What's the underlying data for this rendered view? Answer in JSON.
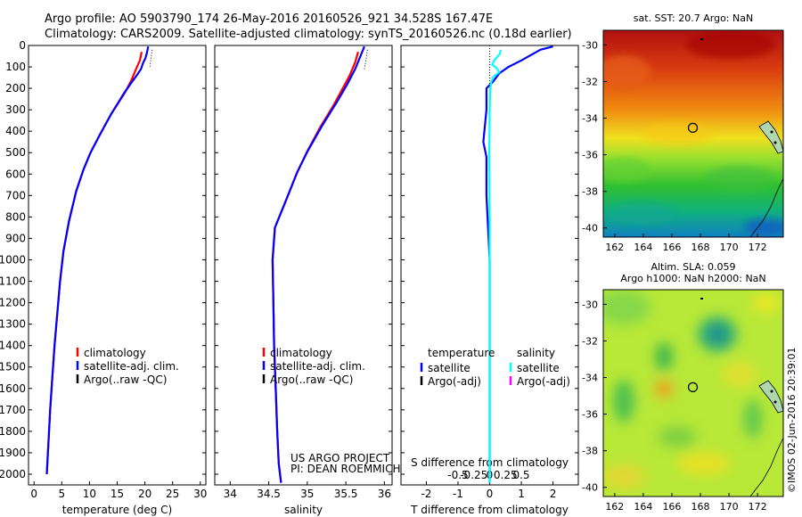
{
  "title": {
    "line1": "Argo profile: AO 5903790_174 26-May-2016 20160526_921 34.528S 167.47E",
    "line2": "Climatology: CARS2009. Satellite-adjusted climatology: synTS_20160526.nc (0.18d earlier)"
  },
  "colors": {
    "climatology": "#ff0000",
    "satellite": "#0000ff",
    "argo": "#000000",
    "salinity_satellite": "#00ffff",
    "salinity_argo": "#ff00ff"
  },
  "credits": {
    "project": "US ARGO PROJECT",
    "pi": "PI: DEAN ROEMMICH",
    "timestamp": "©IMOS 02-Jun-2016 20:39:01"
  },
  "chart_data": [
    {
      "type": "line",
      "name": "temperature",
      "xlabel": "temperature (deg C)",
      "xlim": [
        -1,
        31
      ],
      "ylim": [
        2050,
        0
      ],
      "xticks": [
        "0",
        "5",
        "10",
        "15",
        "20",
        "25",
        "30"
      ],
      "yticks": [
        "0",
        "100",
        "200",
        "300",
        "400",
        "500",
        "600",
        "700",
        "800",
        "900",
        "1000",
        "1100",
        "1200",
        "1300",
        "1400",
        "1500",
        "1600",
        "1700",
        "1800",
        "1900",
        "2000"
      ],
      "legend": [
        "climatology",
        "satellite-adj. clim.",
        "Argo(..raw -QC)"
      ],
      "series": [
        {
          "name": "climatology",
          "x": [
            19.4,
            19.1,
            18.4,
            17.6,
            16.4,
            13.9,
            11.8,
            10.2,
            8.9,
            7.6,
            6.3,
            5.3,
            4.7,
            4.2,
            3.7,
            3.3,
            2.9,
            2.6,
            2.3
          ],
          "y": [
            30,
            70,
            110,
            160,
            220,
            320,
            420,
            500,
            580,
            680,
            820,
            960,
            1100,
            1250,
            1400,
            1550,
            1700,
            1850,
            2000
          ]
        },
        {
          "name": "satellite-adj. clim.",
          "x": [
            20.6,
            20.4,
            20.1,
            19.7,
            19.3,
            18.5,
            17.4,
            16.3,
            13.9,
            11.8,
            10.2,
            8.9,
            7.6,
            6.3,
            5.3,
            4.7,
            4.2,
            3.7,
            3.3,
            2.9,
            2.6,
            2.3
          ],
          "y": [
            5,
            30,
            60,
            80,
            110,
            140,
            180,
            220,
            320,
            420,
            500,
            580,
            680,
            820,
            960,
            1100,
            1250,
            1400,
            1550,
            1700,
            1850,
            2000
          ]
        },
        {
          "name": "Argo(..raw -QC)",
          "x": [
            21.3,
            21.1,
            20.9
          ],
          "y": [
            20,
            60,
            100
          ]
        }
      ]
    },
    {
      "type": "line",
      "name": "salinity",
      "xlabel": "salinity",
      "xlim": [
        33.8,
        36.1
      ],
      "ylim": [
        2050,
        0
      ],
      "xticks": [
        "34",
        "34.5",
        "35",
        "35.5",
        "36"
      ],
      "legend": [
        "climatology",
        "satellite-adj. clim.",
        "Argo(..raw -QC)"
      ],
      "series": [
        {
          "name": "climatology",
          "x": [
            35.66,
            35.62,
            35.55,
            35.46,
            35.34,
            35.17,
            34.99,
            34.86,
            34.75,
            34.58,
            34.55,
            34.56,
            34.57,
            34.59,
            34.61,
            34.63,
            34.66
          ],
          "y": [
            30,
            80,
            140,
            200,
            280,
            380,
            500,
            600,
            700,
            850,
            1000,
            1200,
            1400,
            1600,
            1800,
            1950,
            2040
          ]
        },
        {
          "name": "satellite-adj. clim.",
          "x": [
            35.74,
            35.69,
            35.62,
            35.52,
            35.39,
            35.2,
            35.01,
            34.87,
            34.76,
            34.58,
            34.55,
            34.56,
            34.57,
            34.59,
            34.61,
            34.63,
            34.66
          ],
          "y": [
            5,
            50,
            110,
            180,
            260,
            370,
            490,
            590,
            690,
            850,
            1000,
            1200,
            1400,
            1600,
            1800,
            1950,
            2040
          ]
        },
        {
          "name": "Argo(..raw -QC)",
          "x": [
            35.78,
            35.76,
            35.74
          ],
          "y": [
            20,
            70,
            110
          ]
        }
      ]
    },
    {
      "type": "line",
      "name": "difference",
      "xlabel": "T difference from climatology",
      "xlabel_top": "S difference from climatology",
      "xlim": [
        -2.8,
        2.8
      ],
      "ylim": [
        2050,
        0
      ],
      "xticks": [
        "-2",
        "-1",
        "0",
        "1",
        "2"
      ],
      "xticks_top": [
        "-0.5",
        "-0.25",
        "0",
        "0.25",
        "0.5"
      ],
      "legend_groups": [
        {
          "title": "temperature",
          "items": [
            "satellite",
            "Argo(-adj)"
          ]
        },
        {
          "title": "salinity",
          "items": [
            "satellite",
            "Argo(-adj)"
          ]
        }
      ],
      "series": [
        {
          "name": "temperature satellite",
          "x": [
            2.0,
            1.6,
            1.3,
            1.0,
            0.6,
            0.3,
            0.1,
            -0.1,
            -0.1,
            -0.2,
            -0.1,
            -0.1,
            0.0,
            0.0,
            0.0,
            0.0,
            0.0
          ],
          "y": [
            5,
            20,
            45,
            70,
            100,
            130,
            170,
            200,
            300,
            450,
            520,
            700,
            1000,
            1300,
            1500,
            1800,
            2040
          ]
        },
        {
          "name": "salinity satellite",
          "x": [
            0.35,
            0.32,
            0.14,
            0.08,
            0.22,
            0.3,
            0.12,
            0.05,
            0.02,
            0.0,
            -0.01,
            0.0,
            0.0,
            0.0,
            0.0
          ],
          "y": [
            20,
            40,
            70,
            90,
            105,
            125,
            145,
            170,
            200,
            300,
            500,
            800,
            1200,
            1600,
            2040
          ]
        }
      ]
    },
    {
      "type": "heatmap",
      "name": "sat-sst-map",
      "title": "sat. SST: 20.7  Argo: NaN",
      "xlim": [
        161.2,
        173.8
      ],
      "ylim": [
        -40.5,
        -29.2
      ],
      "xticks": [
        "162",
        "164",
        "166",
        "168",
        "170",
        "172"
      ],
      "yticks": [
        "-30",
        "-32",
        "-34",
        "-36",
        "-38",
        "-40"
      ],
      "marker": {
        "lon": 167.47,
        "lat": -34.528
      }
    },
    {
      "type": "heatmap",
      "name": "sla-map",
      "title_line1": "Altim. SLA: 0.059",
      "title_line2": "Argo h1000: NaN  h2000: NaN",
      "xlim": [
        161.2,
        173.8
      ],
      "ylim": [
        -40.5,
        -29.2
      ],
      "xticks": [
        "162",
        "164",
        "166",
        "168",
        "170",
        "172"
      ],
      "yticks": [
        "-30",
        "-32",
        "-34",
        "-36",
        "-38",
        "-40"
      ],
      "marker": {
        "lon": 167.47,
        "lat": -34.528
      }
    }
  ]
}
